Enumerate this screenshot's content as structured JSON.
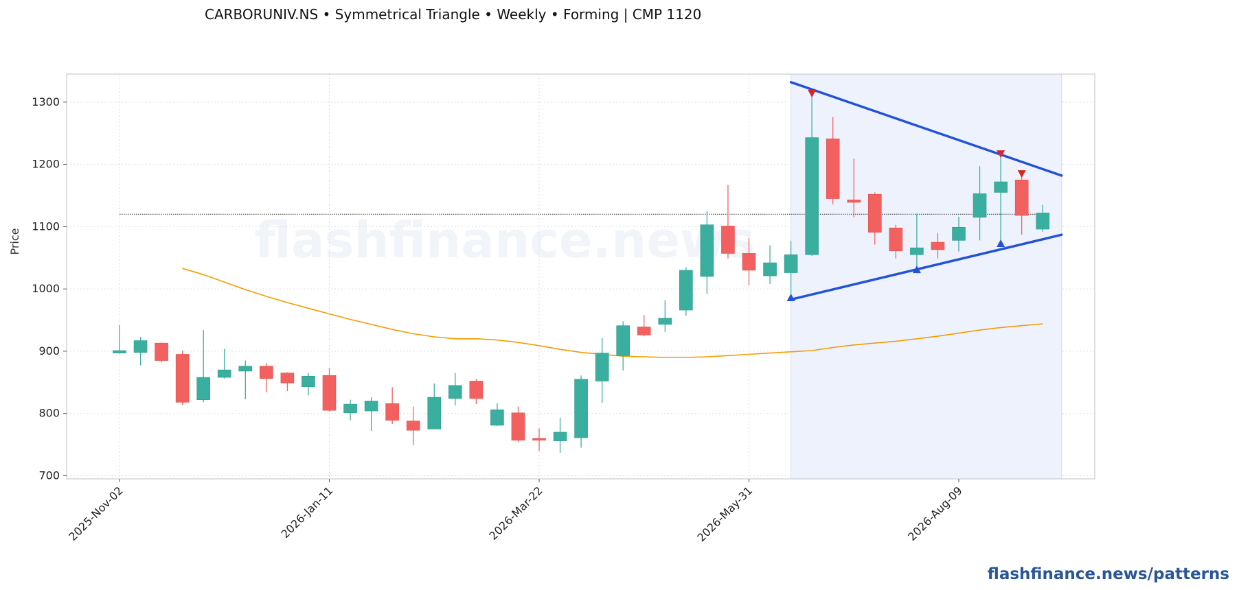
{
  "chart_data": {
    "type": "candlestick",
    "title": "CARBORUNIV.NS  •  Symmetrical Triangle  •  Weekly  •  Forming  |  CMP 1120",
    "ylabel": "Price",
    "ylim": [
      695,
      1345
    ],
    "yticks": [
      700,
      800,
      900,
      1000,
      1100,
      1200,
      1300
    ],
    "xtick_labels": [
      "2025-Nov-02",
      "2026-Jan-11",
      "2026-Mar-22",
      "2026-May-31",
      "2026-Aug-09"
    ],
    "xtick_index": [
      0,
      10,
      20,
      30,
      40
    ],
    "cmp": 1120,
    "colors": {
      "up": "#3aaf9f",
      "down": "#f2615f",
      "ma": "#f59b00",
      "trendline": "#2352d6",
      "marker_high": "#d62728",
      "marker_low": "#2352d6",
      "pattern_zone": "#eef2fc"
    },
    "candles": [
      {
        "date": "2025-Nov-02",
        "o": 897,
        "h": 942,
        "l": 896,
        "c": 901
      },
      {
        "date": "2025-Nov-09",
        "o": 898,
        "h": 923,
        "l": 877,
        "c": 917
      },
      {
        "date": "2025-Nov-16",
        "o": 913,
        "h": 914,
        "l": 882,
        "c": 885
      },
      {
        "date": "2025-Nov-23",
        "o": 895,
        "h": 901,
        "l": 814,
        "c": 818
      },
      {
        "date": "2025-Nov-30",
        "o": 822,
        "h": 934,
        "l": 818,
        "c": 858
      },
      {
        "date": "2025-Dec-07",
        "o": 858,
        "h": 904,
        "l": 856,
        "c": 870
      },
      {
        "date": "2025-Dec-14",
        "o": 868,
        "h": 885,
        "l": 823,
        "c": 876
      },
      {
        "date": "2025-Dec-21",
        "o": 876,
        "h": 881,
        "l": 834,
        "c": 856
      },
      {
        "date": "2025-Dec-28",
        "o": 865,
        "h": 866,
        "l": 836,
        "c": 849
      },
      {
        "date": "2026-Jan-04",
        "o": 843,
        "h": 865,
        "l": 829,
        "c": 860
      },
      {
        "date": "2026-Jan-11",
        "o": 861,
        "h": 873,
        "l": 803,
        "c": 805
      },
      {
        "date": "2026-Jan-18",
        "o": 801,
        "h": 822,
        "l": 789,
        "c": 815
      },
      {
        "date": "2026-Jan-25",
        "o": 804,
        "h": 826,
        "l": 772,
        "c": 820
      },
      {
        "date": "2026-Feb-01",
        "o": 816,
        "h": 842,
        "l": 783,
        "c": 789
      },
      {
        "date": "2026-Feb-08",
        "o": 788,
        "h": 811,
        "l": 749,
        "c": 773
      },
      {
        "date": "2026-Feb-15",
        "o": 775,
        "h": 848,
        "l": 775,
        "c": 826
      },
      {
        "date": "2026-Feb-22",
        "o": 824,
        "h": 865,
        "l": 813,
        "c": 845
      },
      {
        "date": "2026-Mar-01",
        "o": 852,
        "h": 855,
        "l": 815,
        "c": 824
      },
      {
        "date": "2026-Mar-08",
        "o": 781,
        "h": 816,
        "l": 780,
        "c": 806
      },
      {
        "date": "2026-Mar-15",
        "o": 801,
        "h": 811,
        "l": 754,
        "c": 757
      },
      {
        "date": "2026-Mar-22",
        "o": 760,
        "h": 776,
        "l": 740,
        "c": 757
      },
      {
        "date": "2026-Mar-29",
        "o": 756,
        "h": 793,
        "l": 737,
        "c": 770
      },
      {
        "date": "2026-Apr-05",
        "o": 761,
        "h": 861,
        "l": 745,
        "c": 855
      },
      {
        "date": "2026-Apr-12",
        "o": 852,
        "h": 921,
        "l": 817,
        "c": 897
      },
      {
        "date": "2026-Apr-19",
        "o": 893,
        "h": 948,
        "l": 869,
        "c": 941
      },
      {
        "date": "2026-Apr-26",
        "o": 939,
        "h": 958,
        "l": 924,
        "c": 926
      },
      {
        "date": "2026-May-03",
        "o": 943,
        "h": 982,
        "l": 931,
        "c": 953
      },
      {
        "date": "2026-May-10",
        "o": 966,
        "h": 1035,
        "l": 957,
        "c": 1030
      },
      {
        "date": "2026-May-17",
        "o": 1020,
        "h": 1125,
        "l": 992,
        "c": 1103
      },
      {
        "date": "2026-May-24",
        "o": 1101,
        "h": 1167,
        "l": 1049,
        "c": 1057
      },
      {
        "date": "2026-May-31",
        "o": 1057,
        "h": 1082,
        "l": 1006,
        "c": 1030
      },
      {
        "date": "2026-Jun-07",
        "o": 1021,
        "h": 1070,
        "l": 1008,
        "c": 1042
      },
      {
        "date": "2026-Jun-14",
        "o": 1026,
        "h": 1077,
        "l": 987,
        "c": 1055
      },
      {
        "date": "2026-Jun-21",
        "o": 1055,
        "h": 1313,
        "l": 1053,
        "c": 1243
      },
      {
        "date": "2026-Jun-28",
        "o": 1241,
        "h": 1276,
        "l": 1136,
        "c": 1145
      },
      {
        "date": "2026-Jul-05",
        "o": 1143,
        "h": 1209,
        "l": 1115,
        "c": 1139
      },
      {
        "date": "2026-Jul-12",
        "o": 1152,
        "h": 1155,
        "l": 1071,
        "c": 1091
      },
      {
        "date": "2026-Jul-19",
        "o": 1098,
        "h": 1103,
        "l": 1049,
        "c": 1061
      },
      {
        "date": "2026-Jul-26",
        "o": 1055,
        "h": 1121,
        "l": 1032,
        "c": 1066
      },
      {
        "date": "2026-Aug-02",
        "o": 1075,
        "h": 1090,
        "l": 1049,
        "c": 1063
      },
      {
        "date": "2026-Aug-09",
        "o": 1078,
        "h": 1116,
        "l": 1060,
        "c": 1099
      },
      {
        "date": "2026-Aug-16",
        "o": 1115,
        "h": 1197,
        "l": 1078,
        "c": 1153
      },
      {
        "date": "2026-Aug-23",
        "o": 1155,
        "h": 1216,
        "l": 1074,
        "c": 1172
      },
      {
        "date": "2026-Aug-30",
        "o": 1175,
        "h": 1184,
        "l": 1087,
        "c": 1118
      },
      {
        "date": "2026-Sep-06",
        "o": 1096,
        "h": 1135,
        "l": 1092,
        "c": 1122
      }
    ],
    "ma_values": [
      1033,
      1023,
      1011,
      999,
      988,
      978,
      969,
      960,
      951,
      943,
      935,
      928,
      923,
      920,
      920,
      918,
      914,
      909,
      903,
      898,
      895,
      892,
      891,
      890,
      890,
      891,
      893,
      895,
      897,
      899,
      901,
      906,
      910,
      913,
      916,
      920,
      924,
      929,
      934,
      938,
      941,
      944
    ],
    "ma_start_index": 3,
    "pattern_zone": {
      "start_index": 32,
      "end_index": 44.9
    },
    "upper_trendline": {
      "from": {
        "index": 32,
        "price": 1332
      },
      "to": {
        "index": 44.9,
        "price": 1182
      }
    },
    "lower_trendline": {
      "from": {
        "index": 32,
        "price": 983
      },
      "to": {
        "index": 44.9,
        "price": 1087
      }
    },
    "pivot_highs": [
      {
        "index": 33,
        "price": 1313
      },
      {
        "index": 42,
        "price": 1216
      },
      {
        "index": 43,
        "price": 1184
      }
    ],
    "pivot_lows": [
      {
        "index": 32,
        "price": 987
      },
      {
        "index": 38,
        "price": 1032
      },
      {
        "index": 42,
        "price": 1074
      }
    ]
  },
  "watermark": "flashfinance.news",
  "footer": "flashfinance.news/patterns"
}
